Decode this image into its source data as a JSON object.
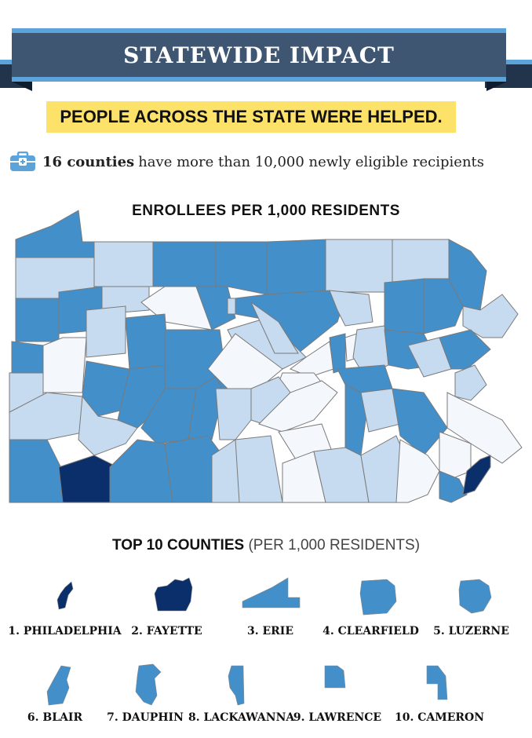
{
  "header": {
    "title": "STATEWIDE IMPACT"
  },
  "banner": {
    "text": "PEOPLE ACROSS THE STATE WERE HELPED."
  },
  "fact": {
    "icon": "medical-kit-icon",
    "highlight": "16 counties",
    "text": "have more than 10,000 newly eligible recipients"
  },
  "map": {
    "title": "ENROLLEES PER 1,000 RESIDENTS",
    "colors": {
      "highest": "#0b2f6b",
      "high": "#428fca",
      "medium": "#c6dbef",
      "low": "#f4f8fd",
      "border": "#7a7a7a"
    }
  },
  "top_counties": {
    "title": "TOP 10 COUNTIES",
    "subtitle": "(PER 1,000 RESIDENTS)",
    "items": [
      {
        "label": "1. PHILADELPHIA",
        "level": "highest"
      },
      {
        "label": "2. FAYETTE",
        "level": "highest"
      },
      {
        "label": "3. ERIE",
        "level": "high"
      },
      {
        "label": "4. CLEARFIELD",
        "level": "high"
      },
      {
        "label": "5. LUZERNE",
        "level": "high"
      },
      {
        "label": "6. BLAIR",
        "level": "high"
      },
      {
        "label": "7. DAUPHIN",
        "level": "high"
      },
      {
        "label": "8. LACKAWANNA",
        "level": "high"
      },
      {
        "label": "9. LAWRENCE",
        "level": "high"
      },
      {
        "label": "10. CAMERON",
        "level": "high"
      }
    ]
  }
}
